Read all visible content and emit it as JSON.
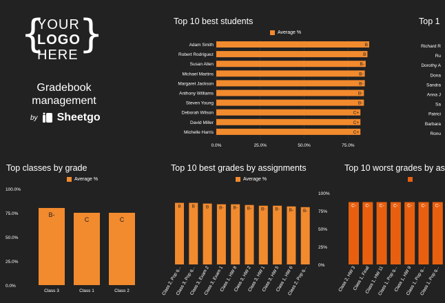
{
  "logo": {
    "lines": [
      "YOUR",
      "LOGO",
      "HERE"
    ]
  },
  "app": {
    "title_line1": "Gradebook",
    "title_line2": "management",
    "by": "by",
    "brand": "Sheetgo",
    "icon": "sheetgo-logo-icon"
  },
  "colors": {
    "background": "#222222",
    "bar": "#f28a2e",
    "bar_dark": "#e8600f",
    "text": "#ffffff"
  },
  "chart_data": [
    {
      "id": "best_students",
      "type": "bar",
      "orientation": "horizontal",
      "title": "Top 10 best students",
      "legend": "Average %",
      "legend_position": "top",
      "categories": [
        "Adam Smith",
        "Robert Rodriguez",
        "Susan Allen",
        "Michael Martins",
        "Margaret Jackson",
        "Anthony Williams",
        "Steven Young",
        "Deborah Wilson",
        "David Miller",
        "Michelle Harris"
      ],
      "values": [
        0.87,
        0.86,
        0.85,
        0.845,
        0.845,
        0.84,
        0.84,
        0.82,
        0.82,
        0.82
      ],
      "labels": [
        "B",
        "B",
        "B-",
        "B-",
        "B-",
        "B-",
        "B-",
        "C+",
        "C+",
        "C+"
      ],
      "xticks": [
        "0.0%",
        "25.0%",
        "50.0%",
        "75.0%"
      ],
      "xlim": [
        0,
        0.87
      ],
      "grid": true
    },
    {
      "id": "worst_students",
      "type": "bar",
      "orientation": "horizontal",
      "title": "Top 1",
      "categories": [
        "Richard R",
        "Ru",
        "Dorothy A",
        "Dona",
        "Sandra",
        "Anna J",
        "Sa",
        "Patrici",
        "Barbara",
        "Ronu"
      ]
    },
    {
      "id": "classes_by_grade",
      "type": "bar",
      "title": "Top classes by grade",
      "legend": "Average %",
      "legend_position": "top",
      "categories": [
        "Class 3",
        "Class 1",
        "Class 2"
      ],
      "values": [
        0.8,
        0.75,
        0.75
      ],
      "labels": [
        "B-",
        "C",
        "C"
      ],
      "yticks": [
        "100.0%",
        "75.0%",
        "50.0%",
        "25.0%",
        "0.0%"
      ],
      "ylim": [
        0,
        1
      ],
      "grid": false
    },
    {
      "id": "best_grades",
      "type": "bar",
      "title": "Top 10 best grades by assignments",
      "legend": "Average %",
      "legend_position": "top",
      "categories": [
        "Class 2, Pop q...",
        "Class 3, Pop q...",
        "Class 3, Exam 2",
        "Class 3, Exam 1",
        "Class 1, HW 8",
        "Class 3, HW 2",
        "Class 3, HW 1",
        "Class 3, HW 5",
        "Class 1, HW 6",
        "Class 2, Pop q..."
      ],
      "values": [
        0.86,
        0.86,
        0.85,
        0.84,
        0.84,
        0.83,
        0.82,
        0.82,
        0.81,
        0.8
      ],
      "labels": [
        "B",
        "B",
        "B",
        "B-",
        "B-",
        "B-",
        "B-",
        "B-",
        "B-",
        "B-"
      ],
      "yticks": [
        "100%",
        "75%",
        "50%",
        "25%",
        "0%"
      ],
      "ylim": [
        0,
        1
      ],
      "grid": false
    },
    {
      "id": "worst_grades",
      "type": "bar",
      "title": "Top 10 worst grades by as",
      "categories": [
        "Class 2, HW 3",
        "Class 1, Final",
        "Class 1, HW 11",
        "Class 1, Pop q...",
        "Class 1, HW 9",
        "Class 1, Pop q...",
        "Class 1, Pop q..."
      ],
      "values": [
        0.7,
        0.7,
        0.7,
        0.7,
        0.7,
        0.7,
        0.7
      ],
      "labels": [
        "C-",
        "C-",
        "C-",
        "C-",
        "C-",
        "C-",
        "C-"
      ],
      "ylim": [
        0,
        0.75
      ]
    }
  ]
}
